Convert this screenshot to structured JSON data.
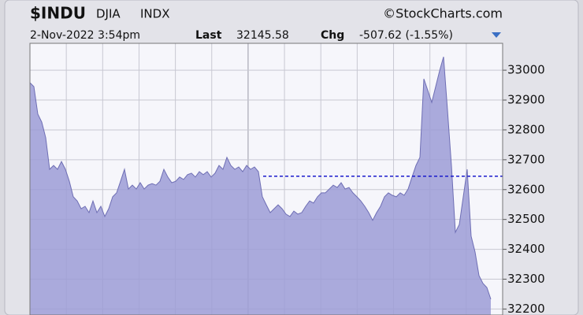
{
  "chart_data": {
    "type": "area",
    "symbol": "$INDU",
    "name": "DJIA",
    "exchange": "INDX",
    "source": "©StockCharts.com",
    "date": "2-Nov-2022 3:54pm",
    "last_label": "Last",
    "last": "32145.58",
    "chg_label": "Chg",
    "chg": "-507.62 (-1.55%)",
    "color": "#9c9cd6",
    "line_color": "#6e6eb4",
    "grid": true,
    "reference_line": {
      "value": 32645,
      "color": "#1a1acc"
    },
    "ylim": [
      32180,
      33090
    ],
    "yticks": [
      32200,
      32300,
      32400,
      32500,
      32600,
      32700,
      32800,
      32900,
      33000
    ],
    "values": [
      32958,
      32945,
      32853,
      32826,
      32774,
      32668,
      32681,
      32668,
      32694,
      32668,
      32628,
      32576,
      32562,
      32536,
      32544,
      32523,
      32562,
      32523,
      32544,
      32510,
      32536,
      32576,
      32589,
      32628,
      32668,
      32602,
      32615,
      32602,
      32623,
      32602,
      32615,
      32620,
      32615,
      32628,
      32668,
      32642,
      32623,
      32628,
      32642,
      32634,
      32650,
      32655,
      32642,
      32660,
      32650,
      32660,
      32642,
      32655,
      32681,
      32668,
      32708,
      32681,
      32668,
      32676,
      32660,
      32681,
      32668,
      32676,
      32660,
      32576,
      32549,
      32523,
      32536,
      32549,
      32536,
      32518,
      32510,
      32528,
      32518,
      32523,
      32544,
      32562,
      32555,
      32576,
      32589,
      32589,
      32602,
      32615,
      32607,
      32623,
      32602,
      32607,
      32589,
      32576,
      32562,
      32544,
      32523,
      32497,
      32523,
      32544,
      32576,
      32589,
      32581,
      32576,
      32589,
      32581,
      32602,
      32642,
      32681,
      32708,
      32971,
      32932,
      32892,
      32945,
      32998,
      33045,
      32866,
      32681,
      32457,
      32483,
      32576,
      32668,
      32444,
      32391,
      32312,
      32286,
      32272,
      32233
    ]
  }
}
